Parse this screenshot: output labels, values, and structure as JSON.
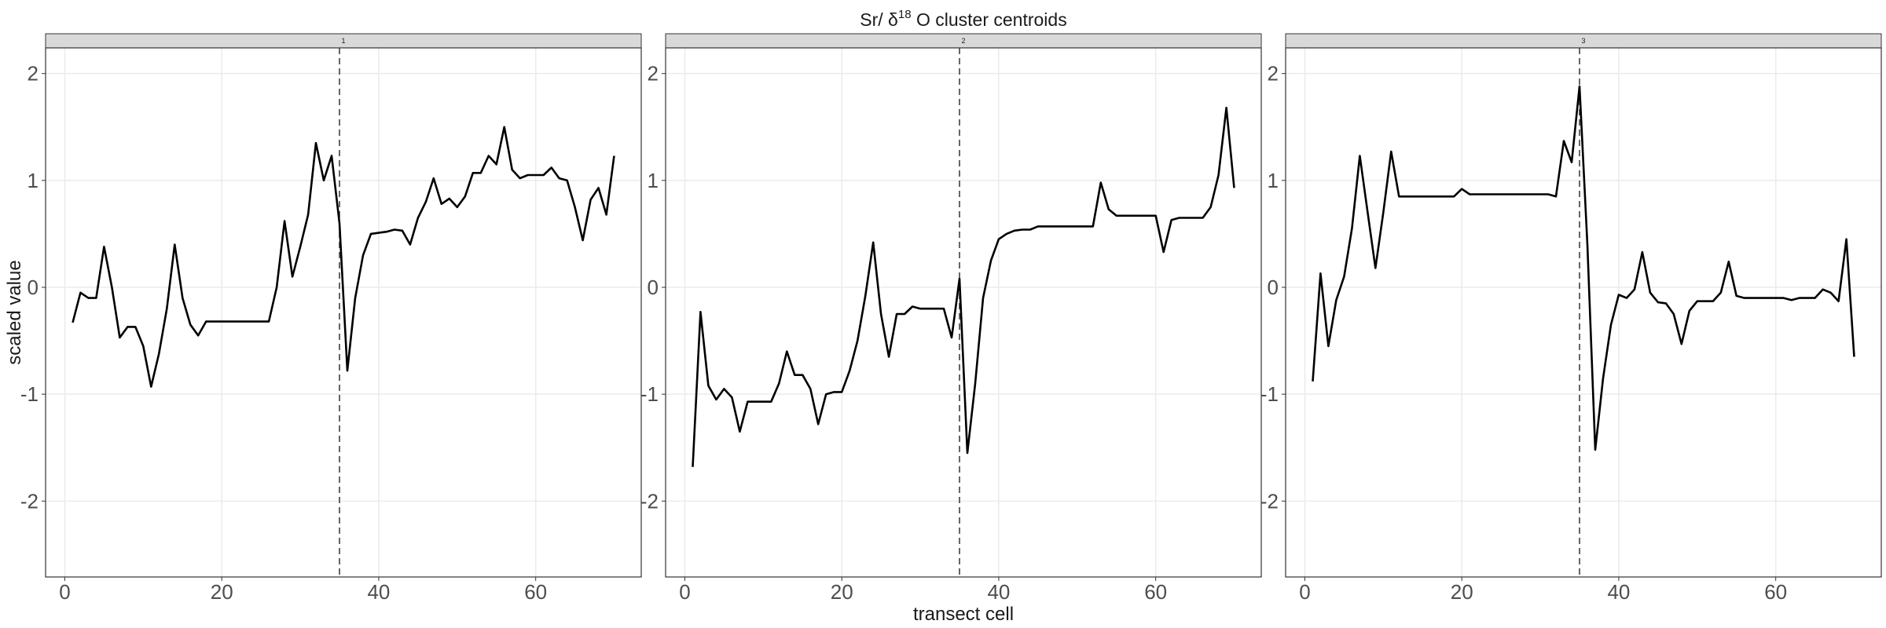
{
  "chart_data": {
    "type": "line",
    "title": [
      "Sr/ δ",
      "18",
      " O cluster centroids"
    ],
    "x_label": "transect cell",
    "y_label": "scaled value",
    "color": "#000000",
    "grid": true,
    "xlim": [
      -2.45,
      73.45
    ],
    "ylim": [
      -2.71,
      2.24
    ],
    "xticks": [
      0,
      20,
      40,
      60
    ],
    "yticks": [
      -2,
      -1,
      0,
      1,
      2
    ],
    "x": [
      1,
      2,
      3,
      4,
      5,
      6,
      7,
      8,
      9,
      10,
      11,
      12,
      13,
      14,
      15,
      16,
      17,
      18,
      19,
      20,
      21,
      22,
      23,
      24,
      25,
      26,
      27,
      28,
      29,
      30,
      31,
      32,
      33,
      34,
      35,
      36,
      37,
      38,
      39,
      40,
      41,
      42,
      43,
      44,
      45,
      46,
      47,
      48,
      49,
      50,
      51,
      52,
      53,
      54,
      55,
      56,
      57,
      58,
      59,
      60,
      61,
      62,
      63,
      64,
      65,
      66,
      67,
      68,
      69,
      70
    ],
    "facets": [
      {
        "label": "1",
        "vline": 35,
        "values": [
          -0.33,
          -0.05,
          -0.1,
          -0.1,
          0.38,
          0,
          -0.47,
          -0.37,
          -0.37,
          -0.55,
          -0.93,
          -0.62,
          -0.2,
          0.4,
          -0.1,
          -0.35,
          -0.45,
          -0.32,
          -0.32,
          -0.32,
          -0.32,
          -0.32,
          -0.32,
          -0.32,
          -0.32,
          -0.32,
          0,
          0.62,
          0.1,
          0.38,
          0.68,
          1.35,
          1.0,
          1.23,
          0.6,
          -0.78,
          -0.1,
          0.3,
          0.5,
          0.51,
          0.52,
          0.54,
          0.53,
          0.4,
          0.65,
          0.8,
          1.02,
          0.78,
          0.83,
          0.75,
          0.85,
          1.07,
          1.07,
          1.23,
          1.15,
          1.5,
          1.1,
          1.02,
          1.05,
          1.05,
          1.05,
          1.12,
          1.02,
          1.0,
          0.75,
          0.44,
          0.82,
          0.93,
          0.68,
          1.23
        ]
      },
      {
        "label": "2",
        "vline": 35,
        "values": [
          -1.68,
          -0.23,
          -0.92,
          -1.05,
          -0.95,
          -1.03,
          -1.35,
          -1.07,
          -1.07,
          -1.07,
          -1.07,
          -0.9,
          -0.6,
          -0.82,
          -0.82,
          -0.95,
          -1.28,
          -1.0,
          -0.98,
          -0.98,
          -0.78,
          -0.5,
          -0.08,
          0.42,
          -0.25,
          -0.65,
          -0.25,
          -0.25,
          -0.18,
          -0.2,
          -0.2,
          -0.2,
          -0.2,
          -0.47,
          0.08,
          -1.55,
          -0.9,
          -0.1,
          0.25,
          0.45,
          0.5,
          0.53,
          0.54,
          0.54,
          0.57,
          0.57,
          0.57,
          0.57,
          0.57,
          0.57,
          0.57,
          0.57,
          0.98,
          0.73,
          0.67,
          0.67,
          0.67,
          0.67,
          0.67,
          0.67,
          0.33,
          0.63,
          0.65,
          0.65,
          0.65,
          0.65,
          0.75,
          1.05,
          1.68,
          0.93
        ]
      },
      {
        "label": "3",
        "vline": 35,
        "values": [
          -0.88,
          0.13,
          -0.55,
          -0.12,
          0.1,
          0.55,
          1.23,
          0.7,
          0.18,
          0.7,
          1.27,
          0.85,
          0.85,
          0.85,
          0.85,
          0.85,
          0.85,
          0.85,
          0.85,
          0.92,
          0.87,
          0.87,
          0.87,
          0.87,
          0.87,
          0.87,
          0.87,
          0.87,
          0.87,
          0.87,
          0.87,
          0.85,
          1.37,
          1.17,
          1.88,
          0.4,
          -1.52,
          -0.85,
          -0.35,
          -0.07,
          -0.1,
          -0.02,
          0.33,
          -0.05,
          -0.14,
          -0.15,
          -0.25,
          -0.53,
          -0.22,
          -0.13,
          -0.13,
          -0.13,
          -0.05,
          0.24,
          -0.08,
          -0.1,
          -0.1,
          -0.1,
          -0.1,
          -0.1,
          -0.1,
          -0.12,
          -0.1,
          -0.1,
          -0.1,
          -0.02,
          -0.05,
          -0.13,
          0.45,
          -0.65
        ]
      }
    ]
  }
}
